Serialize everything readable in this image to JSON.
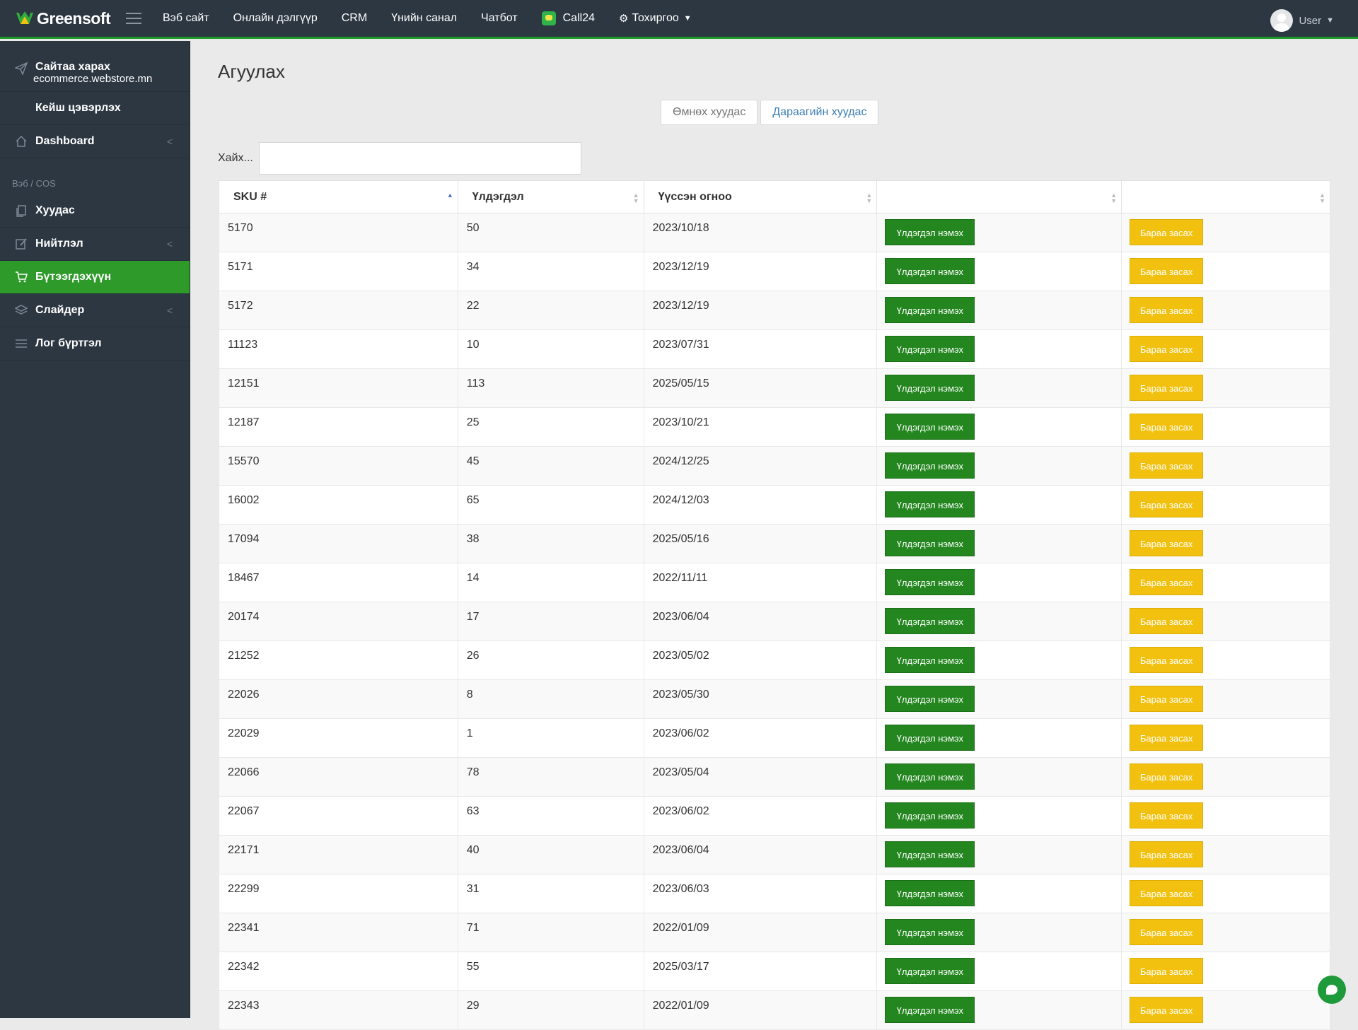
{
  "header": {
    "logo_text": "Greensoft",
    "nav": [
      "Вэб сайт",
      "Онлайн дэлгүүр",
      "CRM",
      "Үнийн санал",
      "Чатбот"
    ],
    "call24": "Call24",
    "settings": "Тохиргоо",
    "user": "User",
    "accent_color": "#1f9a2a"
  },
  "sidebar": {
    "site_title": "Сайтаа харах",
    "site_url": "ecommerce.webstore.mn",
    "case": "Кейш цэвэрлэх",
    "dashboard": "Dashboard",
    "section": "Вэб / COS",
    "items": [
      "Хуудас",
      "Нийтлэл",
      "Бүтээгдэхүүн",
      "Слайдер",
      "Лог бүртгэл"
    ],
    "active_color": "#2e9a2a"
  },
  "main": {
    "title": "Агуулах",
    "prev": "Өмнөх хуудас",
    "next": "Дараагийн хуудас",
    "search_label": "Хайх...",
    "search_value": ""
  },
  "table": {
    "headers": [
      "SKU #",
      "Үлдэгдэл",
      "Үүссэн огноо",
      "",
      ""
    ],
    "add_label": "Үлдэгдэл нэмэх",
    "edit_label": "Бараа засах",
    "rows": [
      {
        "sku": "5170",
        "qty": "50",
        "date": "2023/10/18"
      },
      {
        "sku": "5171",
        "qty": "34",
        "date": "2023/12/19"
      },
      {
        "sku": "5172",
        "qty": "22",
        "date": "2023/12/19"
      },
      {
        "sku": "11123",
        "qty": "10",
        "date": "2023/07/31"
      },
      {
        "sku": "12151",
        "qty": "113",
        "date": "2025/05/15"
      },
      {
        "sku": "12187",
        "qty": "25",
        "date": "2023/10/21"
      },
      {
        "sku": "15570",
        "qty": "45",
        "date": "2024/12/25"
      },
      {
        "sku": "16002",
        "qty": "65",
        "date": "2024/12/03"
      },
      {
        "sku": "17094",
        "qty": "38",
        "date": "2025/05/16"
      },
      {
        "sku": "18467",
        "qty": "14",
        "date": "2022/11/11"
      },
      {
        "sku": "20174",
        "qty": "17",
        "date": "2023/06/04"
      },
      {
        "sku": "21252",
        "qty": "26",
        "date": "2023/05/02"
      },
      {
        "sku": "22026",
        "qty": "8",
        "date": "2023/05/30"
      },
      {
        "sku": "22029",
        "qty": "1",
        "date": "2023/06/02"
      },
      {
        "sku": "22066",
        "qty": "78",
        "date": "2023/05/04"
      },
      {
        "sku": "22067",
        "qty": "63",
        "date": "2023/06/02"
      },
      {
        "sku": "22171",
        "qty": "40",
        "date": "2023/06/04"
      },
      {
        "sku": "22299",
        "qty": "31",
        "date": "2023/06/03"
      },
      {
        "sku": "22341",
        "qty": "71",
        "date": "2022/01/09"
      },
      {
        "sku": "22342",
        "qty": "55",
        "date": "2025/03/17"
      },
      {
        "sku": "22343",
        "qty": "29",
        "date": "2022/01/09"
      }
    ]
  }
}
